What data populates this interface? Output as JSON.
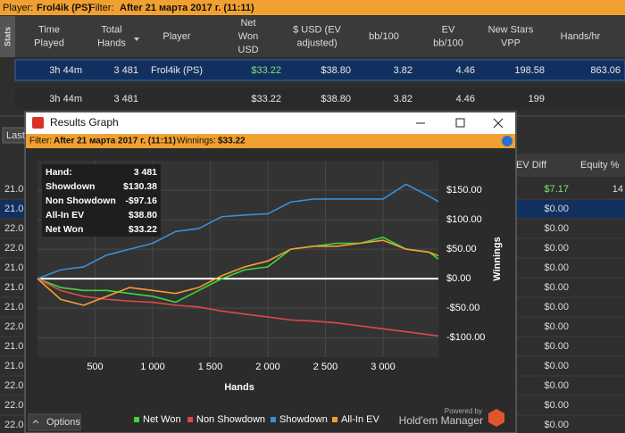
{
  "header": {
    "player_label": "Player:",
    "player": "Frol4ik (PS)",
    "filter_label": "Filter:",
    "filter": "After 21 марта 2017 г. (11:11)"
  },
  "side_tab": "Stats",
  "table": {
    "columns": [
      [
        "Time",
        "Played"
      ],
      [
        "Total",
        "Hands"
      ],
      [
        "Player"
      ],
      [
        "Net",
        "Won",
        "USD"
      ],
      [
        "$ USD (EV",
        "adjusted)"
      ],
      [
        "bb/100"
      ],
      [
        "EV",
        "bb/100"
      ],
      [
        "New Stars",
        "VPP"
      ],
      [
        "Hands/hr"
      ]
    ],
    "rows": [
      [
        "3h 44m",
        "3 481",
        "Frol4ik (PS)",
        "$33.22",
        "$38.80",
        "3.82",
        "4.46",
        "198.58",
        "863.06"
      ],
      [
        "3h 44m",
        "3 481",
        "",
        "$33.22",
        "$38.80",
        "3.82",
        "4.46",
        "199",
        ""
      ]
    ]
  },
  "lower_table": {
    "button": "Last",
    "columns": [
      "EV Diff",
      "Equity %"
    ],
    "left_values": [
      "21.0",
      "21.0",
      "22.0",
      "22.0",
      "21.0",
      "21.0",
      "21.0",
      "22.0",
      "21.0",
      "21.0",
      "22.0",
      "22.0",
      "22.0"
    ],
    "ev_diff": [
      "$7.17",
      "$0.00",
      "$0.00",
      "$0.00",
      "$0.00",
      "$0.00",
      "$0.00",
      "$0.00",
      "$0.00",
      "$0.00",
      "$0.00",
      "$0.00",
      "$0.00"
    ],
    "equity": [
      "14"
    ]
  },
  "window": {
    "title": "Results Graph",
    "filter_label": "Filter:",
    "filter": "After 21 марта 2017 г. (11:11)",
    "winnings_label": "Winnings:",
    "winnings": "$33.22",
    "options": "Options",
    "powered_by": "Powered by",
    "brand": "Hold'em Manager"
  },
  "chart_data": {
    "type": "line",
    "xlabel": "Hands",
    "ylabel": "Winnings",
    "info": [
      [
        "Hand:",
        "3 481"
      ],
      [
        "Showdown",
        "$130.38"
      ],
      [
        "Non Showdown",
        "-$97.16"
      ],
      [
        "All-In EV",
        "$38.80"
      ],
      [
        "Net Won",
        "$33.22"
      ]
    ],
    "x": [
      0,
      200,
      400,
      600,
      800,
      1000,
      1200,
      1400,
      1600,
      1800,
      2000,
      2200,
      2400,
      2600,
      2800,
      3000,
      3200,
      3400,
      3481
    ],
    "series": [
      {
        "name": "Net Won",
        "color": "#3fd43f",
        "values": [
          0,
          -15,
          -20,
          -20,
          -25,
          -30,
          -40,
          -20,
          0,
          15,
          20,
          50,
          55,
          60,
          60,
          70,
          50,
          45,
          33.22
        ]
      },
      {
        "name": "Non Showdown",
        "color": "#e04848",
        "values": [
          0,
          -20,
          -30,
          -35,
          -38,
          -40,
          -45,
          -48,
          -55,
          -60,
          -65,
          -70,
          -72,
          -75,
          -80,
          -85,
          -90,
          -95,
          -97.16
        ]
      },
      {
        "name": "Showdown",
        "color": "#3a8fd8",
        "values": [
          0,
          15,
          20,
          40,
          50,
          60,
          80,
          85,
          105,
          108,
          110,
          130,
          135,
          135,
          135,
          135,
          160,
          140,
          130.38
        ]
      },
      {
        "name": "All-In EV",
        "color": "#f0a030",
        "values": [
          0,
          -35,
          -45,
          -30,
          -15,
          -20,
          -25,
          -15,
          5,
          20,
          30,
          50,
          55,
          55,
          60,
          65,
          50,
          45,
          38.8
        ]
      }
    ],
    "xlim": [
      0,
      3481
    ],
    "ylim": [
      -133,
      200
    ],
    "xticks": [
      500,
      {
        "value": 1000,
        "label": "1 000"
      },
      {
        "value": 1500,
        "label": "1 500"
      },
      {
        "value": 2000,
        "label": "2 000"
      },
      {
        "value": 2500,
        "label": "2 500"
      },
      {
        "value": 3000,
        "label": "3 000"
      }
    ],
    "yticks": [
      {
        "value": 150,
        "label": "$150.00"
      },
      {
        "value": 100,
        "label": "$100.00"
      },
      {
        "value": 50,
        "label": "$50.00"
      },
      {
        "value": 0,
        "label": "$0.00"
      },
      {
        "value": -50,
        "label": "-$50.00"
      },
      {
        "value": -100,
        "label": "-$100.00"
      }
    ],
    "grid": true
  }
}
